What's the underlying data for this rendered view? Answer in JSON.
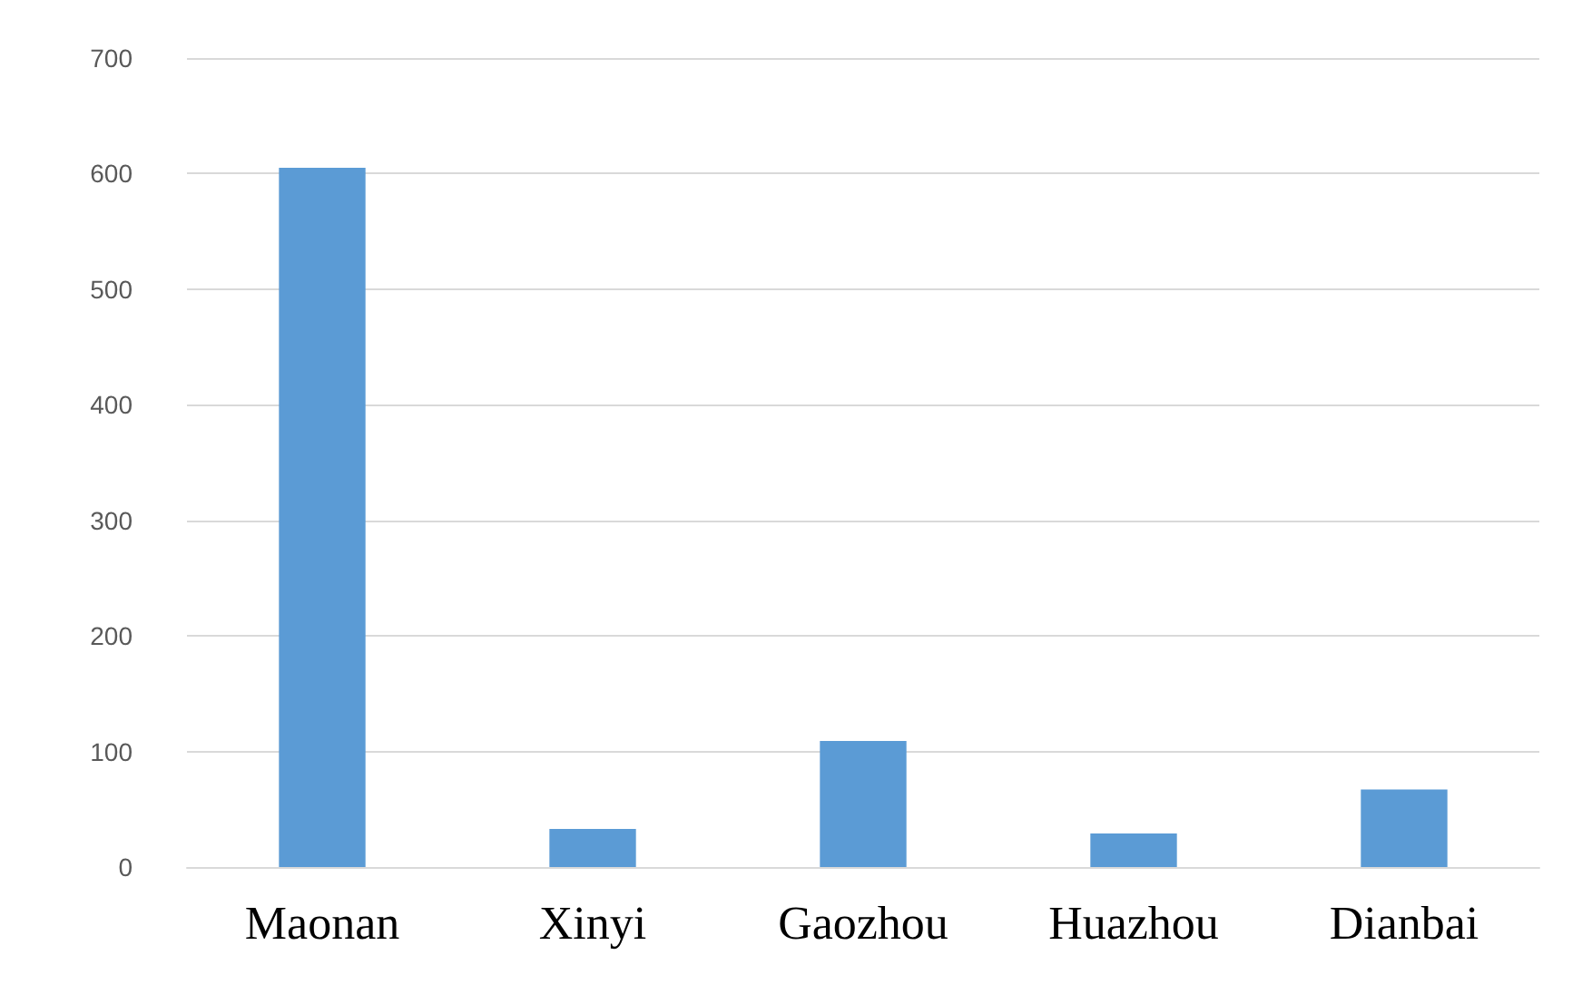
{
  "chart_data": {
    "type": "bar",
    "categories": [
      "Maonan",
      "Xinyi",
      "Gaozhou",
      "Huazhou",
      "Dianbai"
    ],
    "values": [
      605,
      33,
      109,
      29,
      67
    ],
    "color": "#5b9bd5",
    "ylim": [
      0,
      700
    ],
    "yticks": [
      0,
      100,
      200,
      300,
      400,
      500,
      600,
      700
    ],
    "grid": "y"
  }
}
